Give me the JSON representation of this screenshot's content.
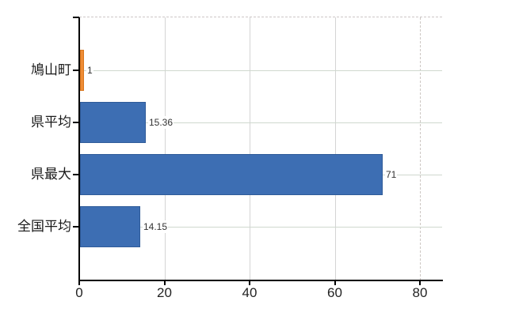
{
  "chart_data": {
    "type": "bar",
    "orientation": "horizontal",
    "title": "",
    "xlabel": "",
    "ylabel": "",
    "categories": [
      "鳩山町",
      "県平均",
      "県最大",
      "全国平均"
    ],
    "values": [
      1,
      15.36,
      71,
      14.15
    ],
    "value_labels": [
      "1",
      "15.36",
      "71",
      "14.15"
    ],
    "bar_colors": [
      "#EE8C35",
      "#3D6EB3",
      "#3D6EB3",
      "#3D6EB3"
    ],
    "bar_border_colors": [
      "#D9771E",
      "#2F5B99",
      "#2F5B99",
      "#2F5B99"
    ],
    "xlim": [
      0,
      85
    ],
    "x_ticks": [
      0,
      20,
      40,
      60,
      80
    ],
    "x_tick_labels": [
      "0",
      "20",
      "40",
      "60",
      "80"
    ],
    "grid": true,
    "legend": false
  },
  "colors": {
    "background": "#FFFFFF",
    "axis": "#000000",
    "grid_vertical": "#D4D4D4",
    "grid_vertical_dashed": "#CDC7C3",
    "grid_row": "#CFD8CE",
    "top_border_dashed": "#CDC7C7",
    "category_text": "#1A1A1A",
    "value_text": "#333333",
    "tick_text": "#222222"
  }
}
